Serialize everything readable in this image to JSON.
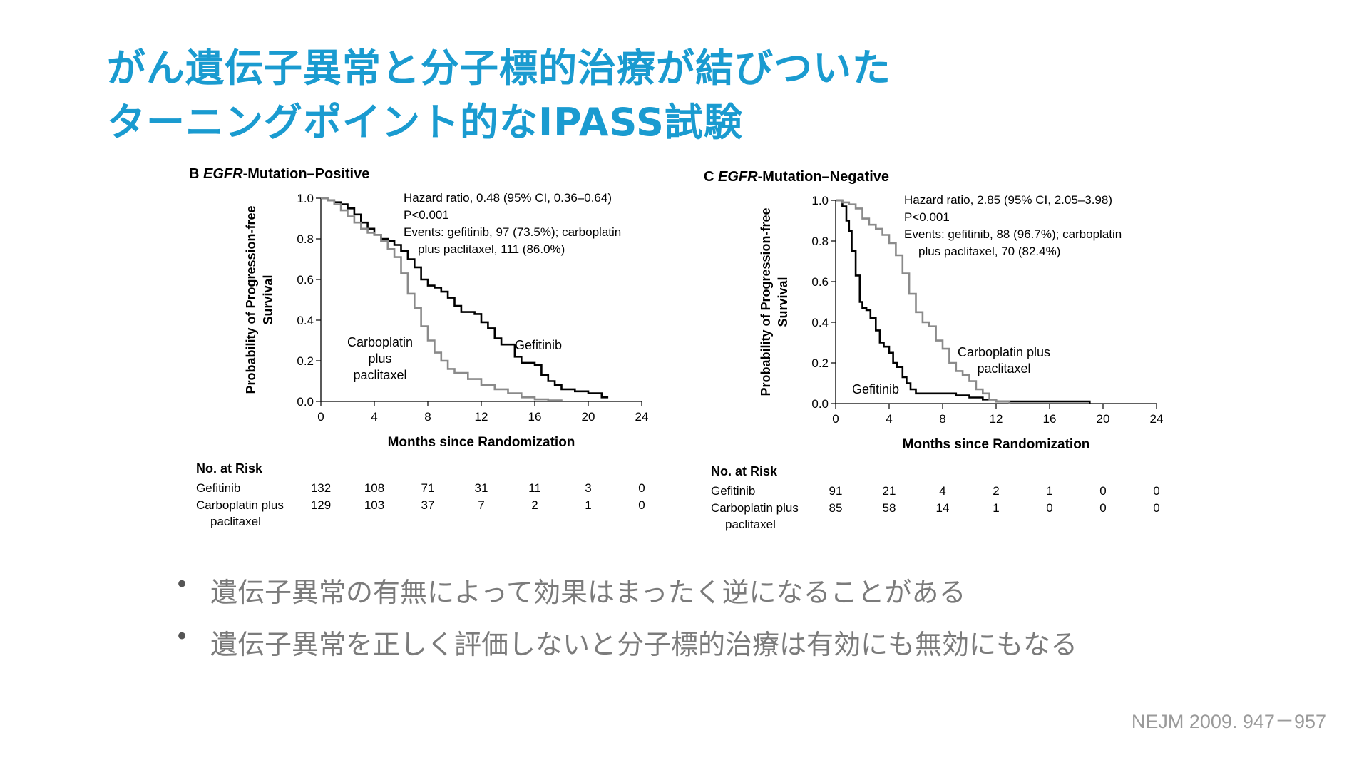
{
  "slide": {
    "title_line1": "がん遺伝子異常と分子標的治療が結びついた",
    "title_line2": "ターニングポイント的なIPASS試験",
    "bullets": [
      "遺伝子異常の有無によって効果はまったく逆になることがある",
      "遺伝子異常を正しく評価しないと分子標的治療は有効にも無効にもなる"
    ],
    "citation": "NEJM 2009. 947－957"
  },
  "colors": {
    "title": "#1a9bd0",
    "gefitinib": "#000000",
    "carboplatin": "#8a8a8a",
    "bullet_text": "#7b7b7b"
  },
  "chart_data": [
    {
      "type": "line",
      "panel_letter": "B",
      "panel_gene": "EGFR",
      "panel_rest": "-Mutation–Positive",
      "xlabel": "Months since Randomization",
      "ylabel_line1": "Probability of Progression-free",
      "ylabel_line2": "Survival",
      "xlim": [
        0,
        24
      ],
      "ylim": [
        0,
        1.0
      ],
      "xticks": [
        "0",
        "4",
        "8",
        "12",
        "16",
        "20",
        "24"
      ],
      "yticks": [
        "0.0",
        "0.2",
        "0.4",
        "0.6",
        "0.8",
        "1.0"
      ],
      "annotation": [
        "Hazard ratio, 0.48 (95% CI, 0.36–0.64)",
        "P<0.001",
        "Events: gefitinib, 97 (73.5%); carboplatin",
        "plus paclitaxel, 111 (86.0%)"
      ],
      "series": [
        {
          "name": "Gefitinib",
          "label_lines": [
            "Gefitinib"
          ],
          "color": "#000000",
          "x": [
            0,
            0.5,
            1,
            1.5,
            2,
            2.5,
            3,
            3.5,
            4,
            4.5,
            5,
            5.5,
            6,
            6.5,
            7,
            7.5,
            8,
            8.5,
            9,
            9.5,
            10,
            10.5,
            11,
            11.5,
            12,
            12.5,
            13,
            13.5,
            14,
            14.5,
            15,
            15.5,
            16,
            16.5,
            17,
            17.5,
            18,
            18.5,
            19,
            20,
            21,
            21.5
          ],
          "y": [
            1.0,
            0.99,
            0.98,
            0.97,
            0.95,
            0.92,
            0.88,
            0.85,
            0.82,
            0.8,
            0.79,
            0.77,
            0.74,
            0.7,
            0.66,
            0.6,
            0.57,
            0.56,
            0.54,
            0.51,
            0.47,
            0.44,
            0.44,
            0.43,
            0.39,
            0.36,
            0.31,
            0.28,
            0.28,
            0.22,
            0.19,
            0.19,
            0.18,
            0.13,
            0.1,
            0.08,
            0.06,
            0.06,
            0.05,
            0.04,
            0.02,
            0.02
          ]
        },
        {
          "name": "Carboplatin plus paclitaxel",
          "label_lines": [
            "Carboplatin",
            "plus",
            "paclitaxel"
          ],
          "color": "#8a8a8a",
          "x": [
            0,
            0.5,
            1,
            1.5,
            2,
            2.5,
            3,
            3.5,
            4,
            4.5,
            5,
            5.5,
            6,
            6.5,
            7,
            7.5,
            8,
            8.5,
            9,
            9.5,
            10,
            11,
            12,
            13,
            14,
            15,
            16,
            17,
            18
          ],
          "y": [
            1.0,
            0.99,
            0.97,
            0.94,
            0.91,
            0.88,
            0.85,
            0.83,
            0.82,
            0.79,
            0.75,
            0.71,
            0.63,
            0.53,
            0.46,
            0.37,
            0.3,
            0.24,
            0.2,
            0.16,
            0.14,
            0.11,
            0.08,
            0.06,
            0.04,
            0.02,
            0.01,
            0.005,
            0.0
          ]
        }
      ],
      "risk_table": {
        "header": "No. at Risk",
        "rows": [
          {
            "label_lines": [
              "Gefitinib"
            ],
            "values": [
              "132",
              "108",
              "71",
              "31",
              "11",
              "3",
              "0"
            ]
          },
          {
            "label_lines": [
              "Carboplatin plus",
              "paclitaxel"
            ],
            "values": [
              "129",
              "103",
              "37",
              "7",
              "2",
              "1",
              "0"
            ]
          }
        ]
      }
    },
    {
      "type": "line",
      "panel_letter": "C",
      "panel_gene": "EGFR",
      "panel_rest": "-Mutation–Negative",
      "xlabel": "Months since Randomization",
      "ylabel_line1": "Probability of Progression-free",
      "ylabel_line2": "Survival",
      "xlim": [
        0,
        24
      ],
      "ylim": [
        0,
        1.0
      ],
      "xticks": [
        "0",
        "4",
        "8",
        "12",
        "16",
        "20",
        "24"
      ],
      "yticks": [
        "0.0",
        "0.2",
        "0.4",
        "0.6",
        "0.8",
        "1.0"
      ],
      "annotation": [
        "Hazard ratio, 2.85 (95% CI, 2.05–3.98)",
        "P<0.001",
        "Events: gefitinib, 88 (96.7%); carboplatin",
        "plus paclitaxel, 70 (82.4%)"
      ],
      "series": [
        {
          "name": "Gefitinib",
          "label_lines": [
            "Gefitinib"
          ],
          "color": "#000000",
          "x": [
            0,
            0.5,
            0.8,
            1,
            1.2,
            1.5,
            1.8,
            2,
            2.3,
            2.6,
            3,
            3.3,
            3.6,
            4,
            4.3,
            4.6,
            5,
            5.3,
            5.6,
            6,
            7,
            8,
            9,
            10,
            11,
            12,
            13,
            15,
            17,
            19
          ],
          "y": [
            1.0,
            0.97,
            0.9,
            0.85,
            0.75,
            0.63,
            0.5,
            0.47,
            0.46,
            0.42,
            0.36,
            0.3,
            0.28,
            0.25,
            0.2,
            0.18,
            0.13,
            0.1,
            0.07,
            0.05,
            0.05,
            0.05,
            0.04,
            0.03,
            0.02,
            0.01,
            0.01,
            0.01,
            0.01,
            0.0
          ]
        },
        {
          "name": "Carboplatin plus paclitaxel",
          "label_lines": [
            "Carboplatin plus",
            "paclitaxel"
          ],
          "color": "#8a8a8a",
          "x": [
            0,
            0.5,
            1,
            1.5,
            2,
            2.5,
            3,
            3.5,
            4,
            4.5,
            5,
            5.5,
            6,
            6.5,
            7,
            7.5,
            8,
            8.5,
            9,
            9.5,
            10,
            10.5,
            11,
            11.5,
            12,
            13
          ],
          "y": [
            1.0,
            0.99,
            0.98,
            0.96,
            0.91,
            0.88,
            0.86,
            0.83,
            0.79,
            0.73,
            0.64,
            0.54,
            0.45,
            0.4,
            0.38,
            0.31,
            0.27,
            0.2,
            0.16,
            0.14,
            0.11,
            0.07,
            0.05,
            0.02,
            0.01,
            0.0
          ]
        }
      ],
      "risk_table": {
        "header": "No. at Risk",
        "rows": [
          {
            "label_lines": [
              "Gefitinib"
            ],
            "values": [
              "91",
              "21",
              "4",
              "2",
              "1",
              "0",
              "0"
            ]
          },
          {
            "label_lines": [
              "Carboplatin plus",
              "paclitaxel"
            ],
            "values": [
              "85",
              "58",
              "14",
              "1",
              "0",
              "0",
              "0"
            ]
          }
        ]
      }
    }
  ]
}
